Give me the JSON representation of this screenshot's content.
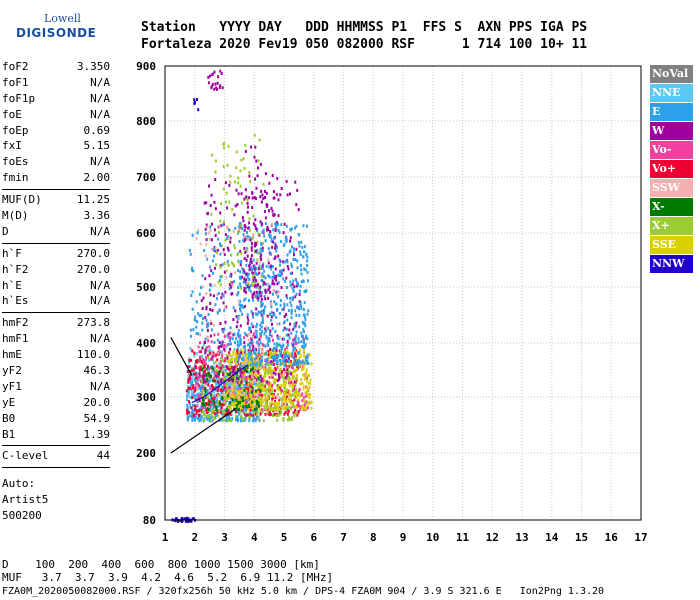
{
  "logo": {
    "line1": "Lowell",
    "line2": "DIGISONDE"
  },
  "header": {
    "row1": "Station   YYYY DAY   DDD HHMMSS P1  FFS S  AXN PPS IGA PS",
    "row2": "Fortaleza 2020 Fev19 050 082000 RSF      1 714 100 10+ 11"
  },
  "params": {
    "group1": [
      {
        "k": "foF2",
        "v": "3.350"
      },
      {
        "k": "foF1",
        "v": "N/A"
      },
      {
        "k": "foF1p",
        "v": "N/A"
      },
      {
        "k": "foE",
        "v": "N/A"
      },
      {
        "k": "foEp",
        "v": "0.69"
      },
      {
        "k": "fxI",
        "v": "5.15"
      },
      {
        "k": "foEs",
        "v": "N/A"
      },
      {
        "k": "fmin",
        "v": "2.00"
      }
    ],
    "group2": [
      {
        "k": "MUF(D)",
        "v": "11.25"
      },
      {
        "k": "M(D)",
        "v": "3.36"
      },
      {
        "k": "D",
        "v": "N/A"
      }
    ],
    "group3": [
      {
        "k": "h`F",
        "v": "270.0"
      },
      {
        "k": "h`F2",
        "v": "270.0"
      },
      {
        "k": "h`E",
        "v": "N/A"
      },
      {
        "k": "h`Es",
        "v": "N/A"
      }
    ],
    "group4": [
      {
        "k": "hmF2",
        "v": "273.8"
      },
      {
        "k": "hmF1",
        "v": "N/A"
      },
      {
        "k": "hmE",
        "v": "110.0"
      },
      {
        "k": "yF2",
        "v": "46.3"
      },
      {
        "k": "yF1",
        "v": "N/A"
      },
      {
        "k": "yE",
        "v": "20.0"
      },
      {
        "k": "B0",
        "v": "54.9"
      },
      {
        "k": "B1",
        "v": "1.39"
      }
    ],
    "group5": [
      {
        "k": "C-level",
        "v": "44"
      }
    ],
    "auto": [
      "Auto:",
      "Artist5",
      "500200"
    ]
  },
  "legend": [
    {
      "label": "NoVal",
      "color": "#808080"
    },
    {
      "label": "NNE",
      "color": "#5cc8f0"
    },
    {
      "label": "E",
      "color": "#2ea0ea"
    },
    {
      "label": "W",
      "color": "#a000a0"
    },
    {
      "label": "Vo-",
      "color": "#f040a0"
    },
    {
      "label": "Vo+",
      "color": "#ee0033"
    },
    {
      "label": "SSW",
      "color": "#f4b0b0"
    },
    {
      "label": "X-",
      "color": "#007a00"
    },
    {
      "label": "X+",
      "color": "#9ccc33"
    },
    {
      "label": "SSE",
      "color": "#d8d000"
    },
    {
      "label": "NNW",
      "color": "#2000c8"
    }
  ],
  "bottom": {
    "row1": "D    100  200  400  600  800 1000 1500 3000 [km]",
    "row2": "MUF   3.7  3.7  3.9  4.2  4.6  5.2  6.9 11.2 [MHz]"
  },
  "footer": "FZA0M_2020050082000.RSF / 320fx256h 50 kHz 5.0 km / DPS-4 FZA0M 904 / 3.9 S 321.6 E   Ion2Png 1.3.20",
  "chart_data": {
    "type": "scatter",
    "xlim": [
      1,
      17
    ],
    "ylim": [
      80,
      900
    ],
    "x_ticks": [
      "1",
      "2",
      "3",
      "4",
      "5",
      "6",
      "7",
      "8",
      "9",
      "10",
      "11",
      "12",
      "13",
      "14",
      "15",
      "16",
      "17"
    ],
    "y_ticks": [
      "80",
      "200",
      "300",
      "400",
      "500",
      "600",
      "700",
      "800",
      "900"
    ],
    "grid": true,
    "clusters": [
      {
        "color": "#2000c8",
        "x": [
          1.2,
          2.0
        ],
        "y": [
          80,
          86
        ],
        "n": 40
      },
      {
        "color": "#2ea0ea",
        "x": [
          1.7,
          4.2
        ],
        "y": [
          260,
          360
        ],
        "n": 500
      },
      {
        "color": "#5cc8f0",
        "x": [
          1.7,
          3.8
        ],
        "y": [
          300,
          400
        ],
        "n": 220
      },
      {
        "color": "#ee0033",
        "x": [
          1.7,
          5.5
        ],
        "y": [
          270,
          390
        ],
        "n": 420
      },
      {
        "color": "#f040a0",
        "x": [
          2.0,
          5.8
        ],
        "y": [
          280,
          420
        ],
        "n": 260
      },
      {
        "color": "#d8d000",
        "x": [
          3.0,
          5.9
        ],
        "y": [
          280,
          390
        ],
        "n": 480
      },
      {
        "color": "#9ccc33",
        "x": [
          2.2,
          5.4
        ],
        "y": [
          260,
          380
        ],
        "n": 200
      },
      {
        "color": "#a000a0",
        "x": [
          2.2,
          5.5
        ],
        "y": [
          330,
          700
        ],
        "n": 320
      },
      {
        "color": "#2ea0ea",
        "x": [
          3.4,
          5.8
        ],
        "y": [
          360,
          620
        ],
        "n": 520
      },
      {
        "color": "#007a00",
        "x": [
          2.2,
          4.2
        ],
        "y": [
          280,
          360
        ],
        "n": 80
      },
      {
        "color": "#f4b0b0",
        "x": [
          2.0,
          5.0
        ],
        "y": [
          300,
          620
        ],
        "n": 90
      },
      {
        "color": "#9ccc33",
        "x": [
          2.5,
          4.3
        ],
        "y": [
          500,
          780
        ],
        "n": 90
      },
      {
        "color": "#a000a0",
        "x": [
          3.6,
          4.8
        ],
        "y": [
          480,
          760
        ],
        "n": 120
      },
      {
        "color": "#2ea0ea",
        "x": [
          1.8,
          3.4
        ],
        "y": [
          400,
          620
        ],
        "n": 90
      },
      {
        "color": "#a000a0",
        "x": [
          2.4,
          3.0
        ],
        "y": [
          860,
          900
        ],
        "n": 20
      },
      {
        "color": "#2000c8",
        "x": [
          1.9,
          2.1
        ],
        "y": [
          820,
          900
        ],
        "n": 6
      }
    ],
    "trace_lines": [
      {
        "points": [
          [
            1.2,
            200
          ],
          [
            3.4,
            280
          ]
        ],
        "color": "#000000"
      },
      {
        "points": [
          [
            1.2,
            410
          ],
          [
            1.9,
            340
          ]
        ],
        "color": "#000000"
      },
      {
        "points": [
          [
            1.9,
            290
          ],
          [
            2.3,
            300
          ],
          [
            2.8,
            320
          ],
          [
            3.4,
            345
          ],
          [
            3.8,
            360
          ]
        ],
        "color": "#2000c8"
      }
    ]
  }
}
